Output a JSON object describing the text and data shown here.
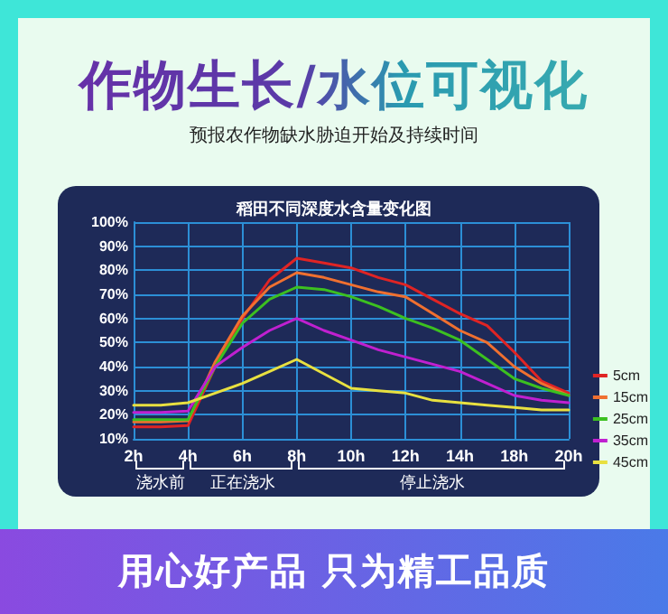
{
  "chart_data": {
    "type": "line",
    "title": "稻田不同深度水含量变化图",
    "annotations": [
      "作物生长/水位可视化",
      "预报农作物缺水胁迫开始及持续时间",
      "用心好产品 只为精工品质",
      "浇水前",
      "正在浇水",
      "停止浇水"
    ],
    "categories": [
      "2h",
      null,
      "4h",
      null,
      "6h",
      null,
      "8h",
      null,
      "10h",
      null,
      "12h",
      null,
      "14h",
      null,
      "18h",
      null,
      "20h"
    ],
    "series": [
      {
        "name": "5cm",
        "color": "#e02424",
        "values": [
          15,
          15,
          15.5,
          40,
          60,
          76,
          85,
          83,
          81,
          77,
          74,
          68,
          62,
          57,
          46,
          34,
          29
        ]
      },
      {
        "name": "15cm",
        "color": "#f07030",
        "values": [
          17,
          17,
          17.5,
          42,
          61,
          73,
          79,
          77,
          74,
          71,
          69,
          62,
          55,
          50,
          40,
          33,
          28
        ]
      },
      {
        "name": "25cm",
        "color": "#3cc020",
        "values": [
          18,
          18,
          18,
          40,
          58,
          68,
          73,
          72,
          69,
          65,
          60,
          56,
          51,
          43,
          35,
          31,
          28
        ]
      },
      {
        "name": "35cm",
        "color": "#c020d0",
        "values": [
          21,
          21,
          21.5,
          40,
          48,
          55,
          60,
          55,
          51,
          47,
          44,
          41,
          38,
          33,
          28,
          26,
          25
        ]
      },
      {
        "name": "45cm",
        "color": "#e8e040",
        "values": [
          24,
          24,
          25,
          29,
          33,
          38,
          43,
          37,
          31,
          30,
          29,
          26,
          25,
          24,
          23,
          22,
          22
        ]
      }
    ],
    "ylim": [
      10,
      100
    ],
    "yticks": [
      {
        "value": 10,
        "label": "10%"
      },
      {
        "value": 20,
        "label": "20%"
      },
      {
        "value": 30,
        "label": "30%"
      },
      {
        "value": 40,
        "label": "40%"
      },
      {
        "value": 50,
        "label": "50%"
      },
      {
        "value": 60,
        "label": "60%"
      },
      {
        "value": 70,
        "label": "70%"
      },
      {
        "value": 80,
        "label": "80%"
      },
      {
        "value": 90,
        "label": "90%"
      },
      {
        "value": 100,
        "label": "100%"
      }
    ],
    "grid": true,
    "legend": "right",
    "marker": "none",
    "line_style": "solid"
  }
}
